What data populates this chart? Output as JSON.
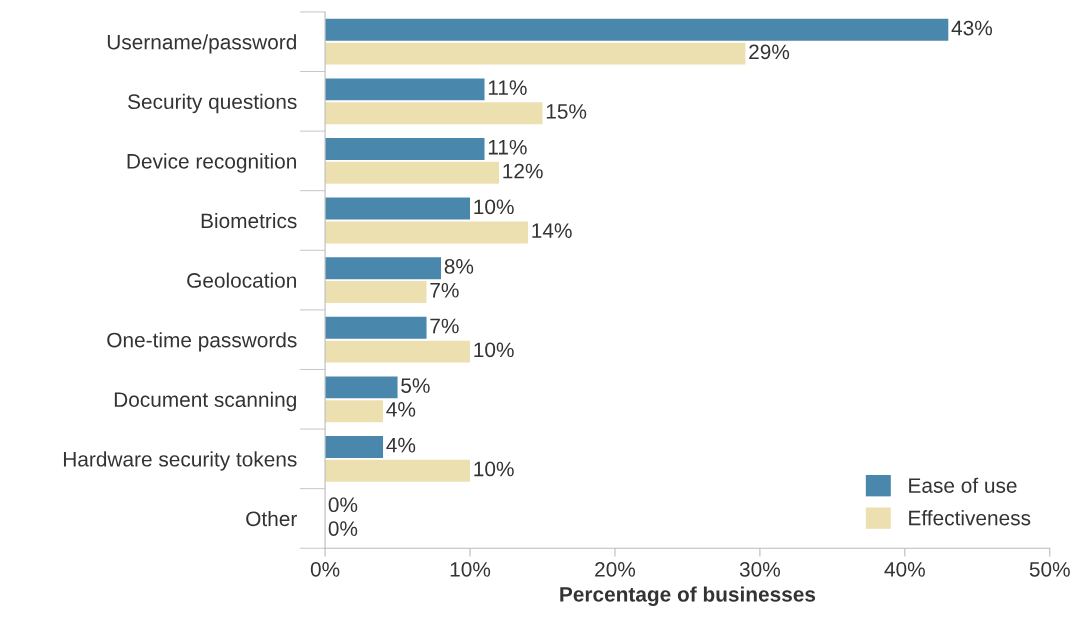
{
  "chart_data": {
    "type": "bar",
    "orientation": "horizontal",
    "xlabel": "Percentage of businesses",
    "categories": [
      "Username/password",
      "Security questions",
      "Device recognition",
      "Biometrics",
      "Geolocation",
      "One-time passwords",
      "Document scanning",
      "Hardware security tokens",
      "Other"
    ],
    "series": [
      {
        "name": "Ease of use",
        "color": "#4a87ad",
        "values": [
          43,
          11,
          11,
          10,
          8,
          7,
          5,
          4,
          0
        ],
        "value_labels": [
          "43%",
          "11%",
          "11%",
          "10%",
          "8%",
          "7%",
          "5%",
          "4%",
          "0%"
        ]
      },
      {
        "name": "Effectiveness",
        "color": "#ede0b0",
        "values": [
          29,
          15,
          12,
          14,
          7,
          10,
          4,
          10,
          0
        ],
        "value_labels": [
          "29%",
          "15%",
          "12%",
          "14%",
          "7%",
          "10%",
          "4%",
          "10%",
          "0%"
        ]
      }
    ],
    "xlim": [
      0,
      50
    ],
    "xticks": [
      {
        "value": 0,
        "label": "0%"
      },
      {
        "value": 10,
        "label": "10%"
      },
      {
        "value": 20,
        "label": "20%"
      },
      {
        "value": 30,
        "label": "30%"
      },
      {
        "value": 40,
        "label": "40%"
      },
      {
        "value": 50,
        "label": "50%"
      }
    ],
    "grid": false,
    "legend": "bottom right"
  }
}
